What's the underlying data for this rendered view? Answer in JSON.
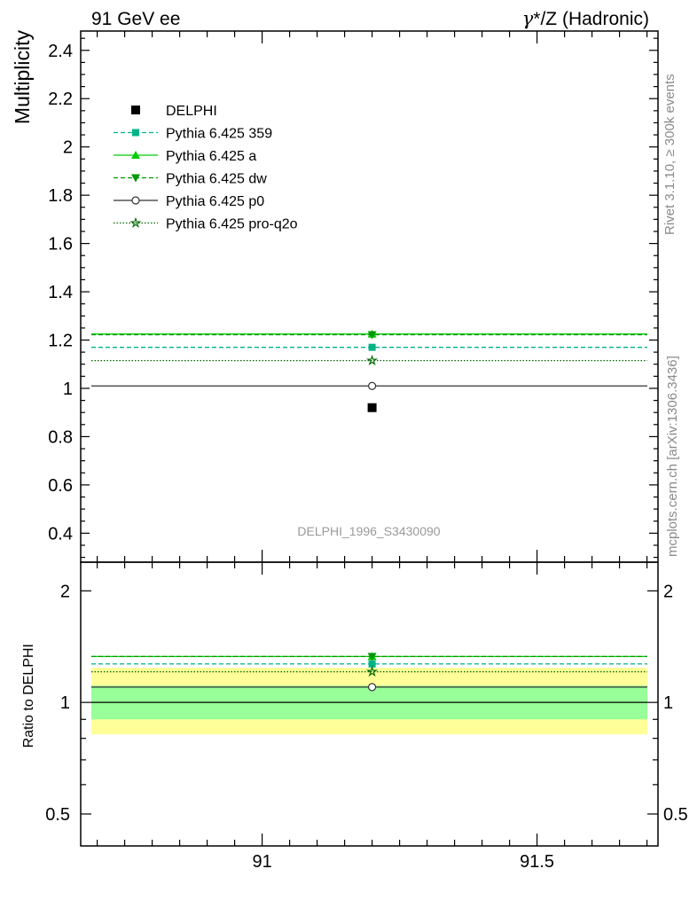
{
  "header": {
    "left_title": "91 GeV ee",
    "right_title_gamma": "γ",
    "right_title_rest": "*/Z (Hadronic)"
  },
  "side_text": {
    "rivet": "Rivet 3.1.10, ≥ 300k events",
    "mcplots": "mcplots.cern.ch [arXiv:1306.3436]"
  },
  "watermark": "DELPHI_1996_S3430090",
  "chart_data": [
    {
      "type": "scatter",
      "panel": "main",
      "ylabel": "Multiplicity",
      "xlim": [
        90.67,
        91.72
      ],
      "ylim": [
        0.28,
        2.48
      ],
      "yticks": [
        0.4,
        0.6,
        0.8,
        1,
        1.2,
        1.4,
        1.6,
        1.8,
        2,
        2.2,
        2.4
      ],
      "ytick_labels": [
        "0.4",
        "0.6",
        "0.8",
        "1",
        "1.2",
        "1.4",
        "1.6",
        "1.8",
        "2",
        "2.2",
        "2.4"
      ],
      "legend_position": "top-left",
      "data_point": {
        "name": "DELPHI",
        "x": 91.2,
        "y": 0.92
      },
      "series": [
        {
          "name": "Pythia 6.425 359",
          "y": 1.17,
          "color": "#00b386",
          "dash": "dashed",
          "marker": "square"
        },
        {
          "name": "Pythia 6.425 a",
          "y": 1.225,
          "color": "#00cc00",
          "dash": "solid",
          "marker": "triangle-up"
        },
        {
          "name": "Pythia 6.425 dw",
          "y": 1.222,
          "color": "#009900",
          "dash": "dashed",
          "marker": "triangle-down"
        },
        {
          "name": "Pythia 6.425 p0",
          "y": 1.01,
          "color": "#333333",
          "dash": "solid",
          "marker": "open-circle"
        },
        {
          "name": "Pythia 6.425 pro-q2o",
          "y": 1.115,
          "color": "#006600",
          "dash": "dotted",
          "marker": "open-star"
        }
      ]
    },
    {
      "type": "scatter",
      "panel": "ratio",
      "ylabel": "Ratio to DELPHI",
      "xlim": [
        90.67,
        91.72
      ],
      "ylim": [
        0.41,
        2.39
      ],
      "log_scale_y": true,
      "yticks": [
        0.5,
        1,
        2
      ],
      "ytick_labels": [
        "0.5",
        "1",
        "2"
      ],
      "xticks": [
        91,
        91.5
      ],
      "xtick_labels": [
        "91",
        "91.5"
      ],
      "bands": [
        {
          "name": "stat",
          "low": 0.9,
          "high": 1.11,
          "color": "#99ff99"
        },
        {
          "name": "total",
          "low": 0.82,
          "high": 1.24,
          "color": "#ffff99"
        }
      ],
      "series": [
        {
          "name": "Pythia 6.425 359",
          "y": 1.27,
          "color": "#00b386",
          "dash": "dashed",
          "marker": "square"
        },
        {
          "name": "Pythia 6.425 a",
          "y": 1.33,
          "color": "#00cc00",
          "dash": "solid",
          "marker": "triangle-up"
        },
        {
          "name": "Pythia 6.425 dw",
          "y": 1.33,
          "color": "#009900",
          "dash": "dashed",
          "marker": "triangle-down"
        },
        {
          "name": "Pythia 6.425 p0",
          "y": 1.1,
          "color": "#333333",
          "dash": "solid",
          "marker": "open-circle"
        },
        {
          "name": "Pythia 6.425 pro-q2o",
          "y": 1.21,
          "color": "#006600",
          "dash": "dotted",
          "marker": "open-star"
        }
      ]
    }
  ]
}
